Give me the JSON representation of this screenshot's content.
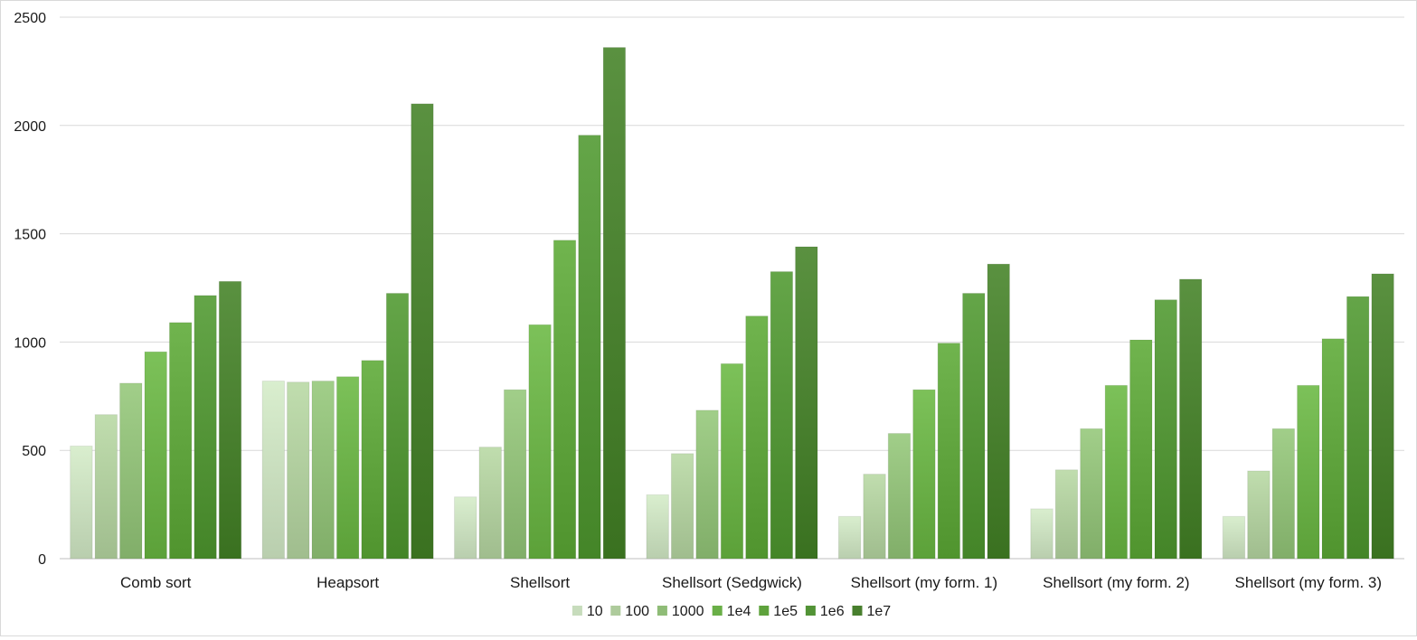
{
  "chart_data": {
    "type": "bar",
    "title": "",
    "xlabel": "",
    "ylabel": "",
    "ylim": [
      0,
      2500
    ],
    "yticks": [
      0,
      500,
      1000,
      1500,
      2000,
      2500
    ],
    "grid": true,
    "legend_position": "bottom",
    "categories": [
      "Comb sort",
      "Heapsort",
      "Shellsort",
      "Shellsort (Sedgwick)",
      "Shellsort (my form. 1)",
      "Shellsort (my form. 2)",
      "Shellsort (my form. 3)"
    ],
    "series": [
      {
        "name": "10",
        "color": "#c7dcbc",
        "values": [
          520,
          820,
          285,
          295,
          195,
          230,
          195
        ]
      },
      {
        "name": "100",
        "color": "#aecb9c",
        "values": [
          665,
          815,
          515,
          485,
          390,
          410,
          405
        ]
      },
      {
        "name": "1000",
        "color": "#8fbc77",
        "values": [
          810,
          820,
          780,
          685,
          578,
          600,
          600
        ]
      },
      {
        "name": "1e4",
        "color": "#6aaf47",
        "values": [
          955,
          840,
          1080,
          900,
          780,
          800,
          800
        ]
      },
      {
        "name": "1e5",
        "color": "#5ea23c",
        "values": [
          1090,
          915,
          1470,
          1120,
          995,
          1010,
          1015
        ]
      },
      {
        "name": "1e6",
        "color": "#529336",
        "values": [
          1215,
          1225,
          1955,
          1325,
          1225,
          1195,
          1210
        ]
      },
      {
        "name": "1e7",
        "color": "#487f2e",
        "values": [
          1280,
          2100,
          2360,
          1440,
          1360,
          1290,
          1315
        ]
      }
    ]
  }
}
